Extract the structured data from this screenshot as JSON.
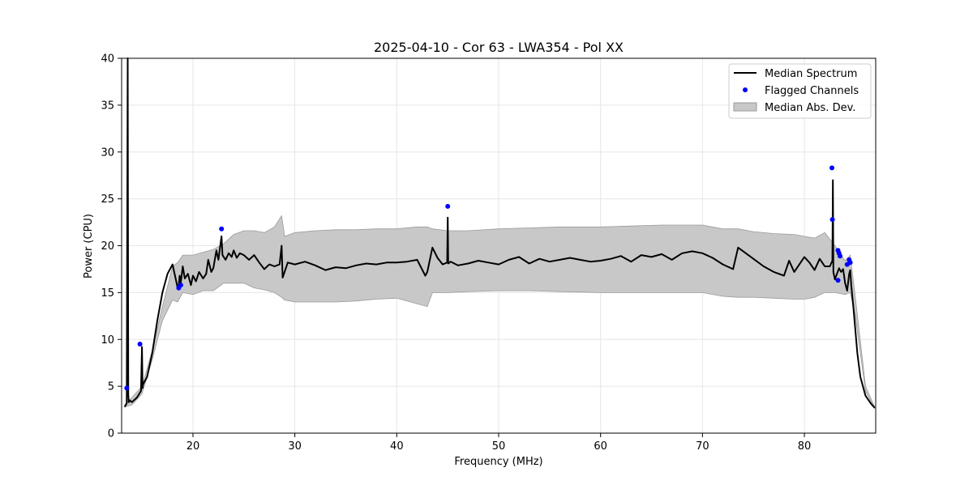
{
  "chart_data": {
    "type": "line",
    "title": "2025-04-10 - Cor 63 - LWA354 - Pol XX",
    "xlabel": "Frequency (MHz)",
    "ylabel": "Power (CPU)",
    "xlim": [
      13.0,
      87.0
    ],
    "ylim": [
      0,
      40
    ],
    "xticks": [
      20,
      30,
      40,
      50,
      60,
      70,
      80
    ],
    "yticks": [
      0,
      5,
      10,
      15,
      20,
      25,
      30,
      35,
      40
    ],
    "grid": true,
    "legend_position": "top-right",
    "legend": [
      {
        "label": "Median Spectrum",
        "kind": "line",
        "color": "#000000"
      },
      {
        "label": "Flagged Channels",
        "kind": "point",
        "color": "#0000ff"
      },
      {
        "label": "Median Abs. Dev.",
        "kind": "area",
        "color": "#c8c8c8"
      }
    ],
    "series": [
      {
        "name": "Median Spectrum",
        "color": "#000000",
        "x": [
          13.3,
          13.5,
          13.6,
          13.65,
          13.7,
          13.8,
          14.0,
          14.5,
          14.9,
          15.0,
          15.05,
          15.1,
          15.5,
          16.0,
          16.5,
          17.0,
          17.5,
          18.0,
          18.3,
          18.5,
          18.6,
          18.7,
          18.8,
          19.0,
          19.2,
          19.5,
          19.8,
          20.0,
          20.3,
          20.6,
          21.0,
          21.3,
          21.5,
          21.8,
          22.0,
          22.3,
          22.5,
          22.8,
          22.9,
          23.2,
          23.5,
          23.8,
          24.0,
          24.3,
          24.6,
          25.0,
          25.5,
          26.0,
          26.5,
          27.0,
          27.5,
          28.0,
          28.5,
          28.7,
          28.8,
          29.3,
          30.0,
          31.0,
          32.0,
          33.0,
          34.0,
          35.0,
          36.0,
          37.0,
          38.0,
          39.0,
          40.0,
          41.0,
          42.0,
          42.8,
          43.0,
          43.5,
          44.0,
          44.5,
          44.95,
          45.0,
          45.05,
          45.3,
          46.0,
          47.0,
          48.0,
          49.0,
          50.0,
          51.0,
          52.0,
          53.0,
          54.0,
          55.0,
          56.0,
          57.0,
          58.0,
          59.0,
          60.0,
          61.0,
          62.0,
          63.0,
          64.0,
          65.0,
          66.0,
          67.0,
          68.0,
          69.0,
          70.0,
          71.0,
          72.0,
          73.0,
          73.5,
          74.0,
          75.0,
          76.0,
          77.0,
          78.0,
          78.5,
          79.0,
          80.0,
          80.5,
          81.0,
          81.5,
          82.0,
          82.5,
          82.75,
          82.8,
          82.85,
          83.0,
          83.2,
          83.4,
          83.6,
          83.8,
          84.0,
          84.2,
          84.4,
          84.5,
          84.6,
          84.8,
          85.0,
          85.2,
          85.5,
          86.0,
          86.5,
          86.9
        ],
        "values": [
          2.8,
          3.2,
          40.0,
          4.2,
          3.3,
          3.5,
          3.3,
          3.8,
          4.5,
          9.2,
          4.8,
          5.2,
          6.0,
          8.5,
          12.0,
          15.0,
          17.0,
          18.0,
          16.5,
          15.5,
          15.8,
          16.8,
          16.0,
          17.8,
          16.5,
          17.0,
          15.8,
          16.8,
          16.2,
          17.2,
          16.5,
          17.0,
          18.5,
          17.2,
          17.6,
          19.5,
          18.5,
          21.0,
          19.0,
          18.5,
          19.2,
          18.8,
          19.5,
          18.7,
          19.2,
          19.0,
          18.5,
          19.0,
          18.2,
          17.5,
          18.0,
          17.8,
          18.0,
          20.0,
          16.6,
          18.2,
          18.0,
          18.3,
          17.9,
          17.4,
          17.7,
          17.6,
          17.9,
          18.1,
          18.0,
          18.2,
          18.2,
          18.3,
          18.5,
          16.8,
          17.2,
          19.8,
          18.7,
          18.0,
          18.2,
          23.0,
          18.1,
          18.3,
          17.9,
          18.1,
          18.4,
          18.2,
          18.0,
          18.5,
          18.8,
          18.1,
          18.6,
          18.3,
          18.5,
          18.7,
          18.5,
          18.3,
          18.4,
          18.6,
          18.9,
          18.3,
          19.0,
          18.8,
          19.1,
          18.5,
          19.2,
          19.4,
          19.2,
          18.7,
          18.0,
          17.5,
          19.8,
          19.4,
          18.6,
          17.8,
          17.2,
          16.8,
          18.4,
          17.2,
          18.8,
          18.2,
          17.4,
          18.6,
          17.8,
          17.8,
          18.4,
          27.0,
          17.2,
          16.4,
          17.0,
          17.6,
          17.2,
          17.5,
          16.0,
          15.2,
          17.0,
          17.4,
          15.8,
          13.5,
          11.0,
          8.5,
          6.0,
          4.0,
          3.2,
          2.7
        ]
      }
    ],
    "mad_band": {
      "name": "Median Abs. Dev.",
      "color": "#c8c8c8",
      "x": [
        13.3,
        14.0,
        15.0,
        16.0,
        17.0,
        18.0,
        18.5,
        19.0,
        20.0,
        21.0,
        22.0,
        23.0,
        24.0,
        25.0,
        26.0,
        27.0,
        28.0,
        28.7,
        29.0,
        30.0,
        32.0,
        34.0,
        36.0,
        38.0,
        40.0,
        42.0,
        43.0,
        43.5,
        45.0,
        47.0,
        50.0,
        53.0,
        56.0,
        60.0,
        63.0,
        66.0,
        70.0,
        72.0,
        73.5,
        75.0,
        77.0,
        79.0,
        80.0,
        81.0,
        82.0,
        83.0,
        84.0,
        84.5,
        85.0,
        86.0,
        86.9
      ],
      "upper": [
        3.0,
        3.8,
        5.0,
        8.8,
        13.5,
        17.8,
        18.2,
        19.0,
        19.0,
        19.3,
        19.6,
        20.2,
        21.2,
        21.6,
        21.6,
        21.4,
        22.0,
        23.2,
        21.0,
        21.4,
        21.6,
        21.7,
        21.7,
        21.8,
        21.8,
        22.0,
        22.0,
        21.8,
        21.6,
        21.6,
        21.8,
        21.9,
        22.0,
        22.0,
        22.1,
        22.2,
        22.2,
        21.8,
        21.8,
        21.5,
        21.3,
        21.2,
        21.0,
        20.8,
        21.4,
        20.0,
        18.4,
        19.0,
        14.5,
        5.0,
        2.8
      ],
      "lower": [
        2.8,
        3.0,
        4.2,
        7.8,
        12.0,
        14.2,
        14.0,
        15.0,
        14.8,
        15.2,
        15.2,
        16.0,
        16.0,
        16.0,
        15.5,
        15.3,
        15.0,
        14.5,
        14.2,
        14.0,
        14.0,
        14.0,
        14.1,
        14.3,
        14.4,
        13.8,
        13.5,
        15.0,
        15.0,
        15.1,
        15.2,
        15.2,
        15.1,
        15.0,
        15.0,
        15.0,
        15.0,
        14.6,
        14.5,
        14.5,
        14.4,
        14.3,
        14.3,
        14.5,
        15.0,
        15.0,
        14.8,
        15.0,
        12.5,
        4.5,
        2.6
      ]
    },
    "flagged_channels": {
      "name": "Flagged Channels",
      "color": "#0000ff",
      "x": [
        13.5,
        14.8,
        18.6,
        18.8,
        22.8,
        45.0,
        82.7,
        82.75,
        83.3,
        83.4,
        83.5,
        83.3,
        84.2,
        84.4,
        84.5
      ],
      "y": [
        4.8,
        9.5,
        15.5,
        15.8,
        21.8,
        24.2,
        28.3,
        22.8,
        19.5,
        19.2,
        18.9,
        16.3,
        18.0,
        18.5,
        18.2
      ]
    }
  }
}
